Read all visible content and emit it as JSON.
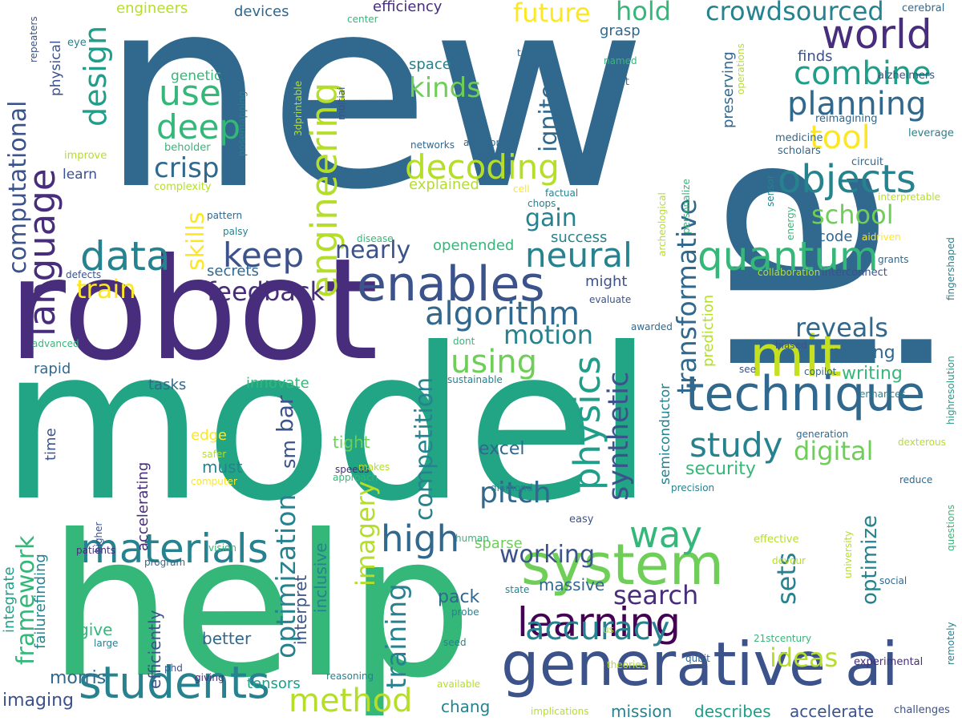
{
  "palette": {
    "c1": "#440154",
    "c2": "#472d7b",
    "c3": "#3b528b",
    "c4": "#31688e",
    "c5": "#26828e",
    "c6": "#1f9e89",
    "c7": "#35b779",
    "c8": "#6ece58",
    "c9": "#b5de2b",
    "c10": "#fde725"
  },
  "words": [
    {
      "text": "new",
      "color": "#31688e"
    },
    {
      "text": "model",
      "color": "#21a585"
    },
    {
      "text": "robot",
      "color": "#472d7b"
    },
    {
      "text": "help",
      "color": "#35b779"
    },
    {
      "text": "ai",
      "color": "#31688e"
    },
    {
      "text": "mit",
      "color": "#c5e021"
    },
    {
      "text": "system",
      "color": "#6ece58"
    },
    {
      "text": "generative ai",
      "color": "#3b528b"
    },
    {
      "text": "learning",
      "color": "#440154"
    },
    {
      "text": "students",
      "color": "#26828e"
    },
    {
      "text": "technique",
      "color": "#31688e"
    },
    {
      "text": "enables",
      "color": "#3b528b"
    },
    {
      "text": "materials",
      "color": "#26828e"
    },
    {
      "text": "quantum",
      "color": "#35b779"
    },
    {
      "text": "language",
      "color": "#472d7b"
    },
    {
      "text": "computational",
      "color": "#3b528b"
    },
    {
      "text": "engineering",
      "color": "#b5de2b"
    },
    {
      "text": "objects",
      "color": "#26828e"
    },
    {
      "text": "world",
      "color": "#472d7b"
    },
    {
      "text": "data",
      "color": "#26828e"
    },
    {
      "text": "algorithm",
      "color": "#31688e"
    },
    {
      "text": "accuracy",
      "color": "#26828e"
    },
    {
      "text": "method",
      "color": "#b5de2b"
    },
    {
      "text": "high",
      "color": "#31688e"
    },
    {
      "text": "way",
      "color": "#35b779"
    },
    {
      "text": "physics",
      "color": "#1f9e89"
    },
    {
      "text": "combine",
      "color": "#1f9e89"
    },
    {
      "text": "planning",
      "color": "#31688e"
    },
    {
      "text": "decoding",
      "color": "#b5de2b"
    },
    {
      "text": "deep",
      "color": "#35b779"
    },
    {
      "text": "keep",
      "color": "#3b528b"
    },
    {
      "text": "neural",
      "color": "#26828e"
    },
    {
      "text": "study",
      "color": "#26828e"
    },
    {
      "text": "using",
      "color": "#6ece58"
    },
    {
      "text": "optimization",
      "color": "#26828e"
    },
    {
      "text": "competition",
      "color": "#26828e"
    },
    {
      "text": "synthetic",
      "color": "#3b528b"
    },
    {
      "text": "transformative",
      "color": "#31688e"
    },
    {
      "text": "pitch",
      "color": "#31688e"
    },
    {
      "text": "search",
      "color": "#472d7b"
    },
    {
      "text": "crowdsourced",
      "color": "#26828e"
    },
    {
      "text": "design",
      "color": "#1f9e89"
    },
    {
      "text": "tool",
      "color": "#fde725"
    },
    {
      "text": "use",
      "color": "#35b779"
    },
    {
      "text": "kinds",
      "color": "#6ece58"
    },
    {
      "text": "crispr",
      "color": "#31688e"
    },
    {
      "text": "future",
      "color": "#fde725"
    },
    {
      "text": "hold",
      "color": "#35b779"
    },
    {
      "text": "motion",
      "color": "#26828e"
    },
    {
      "text": "reveals",
      "color": "#31688e"
    },
    {
      "text": "digital",
      "color": "#6ece58"
    },
    {
      "text": "school",
      "color": "#6ece58"
    },
    {
      "text": "ideas",
      "color": "#b5de2b"
    },
    {
      "text": "working",
      "color": "#3b528b"
    },
    {
      "text": "training",
      "color": "#26828e"
    },
    {
      "text": "imagery",
      "color": "#b5de2b"
    },
    {
      "text": "framework",
      "color": "#35b779"
    },
    {
      "text": "feedback",
      "color": "#472d7b"
    },
    {
      "text": "train",
      "color": "#fde725"
    },
    {
      "text": "skills",
      "color": "#fde725"
    },
    {
      "text": "gain",
      "color": "#26828e"
    },
    {
      "text": "nearly",
      "color": "#3b528b"
    },
    {
      "text": "ignite",
      "color": "#31688e"
    },
    {
      "text": "sets",
      "color": "#26828e"
    },
    {
      "text": "optimize",
      "color": "#26828e"
    },
    {
      "text": "bar",
      "color": "#3b528b"
    },
    {
      "text": "sm",
      "color": "#3b528b"
    },
    {
      "text": "writing",
      "color": "#35b779"
    },
    {
      "text": "making",
      "color": "#31688e"
    },
    {
      "text": "security",
      "color": "#35b779"
    },
    {
      "text": "excel",
      "color": "#31688e"
    },
    {
      "text": "pack",
      "color": "#31688e"
    },
    {
      "text": "tensors",
      "color": "#1f9e89"
    },
    {
      "text": "chang",
      "color": "#26828e"
    },
    {
      "text": "mission",
      "color": "#26828e"
    },
    {
      "text": "describes",
      "color": "#1f9e89"
    },
    {
      "text": "accelerate",
      "color": "#3b528b"
    },
    {
      "text": "morris",
      "color": "#31688e"
    },
    {
      "text": "imaging",
      "color": "#3b528b"
    },
    {
      "text": "integrate",
      "color": "#1f9e89"
    },
    {
      "text": "failurefinding",
      "color": "#26828e"
    },
    {
      "text": "efficiently",
      "color": "#3b528b"
    },
    {
      "text": "interpret",
      "color": "#3b528b"
    },
    {
      "text": "inclusive",
      "color": "#26828e"
    },
    {
      "text": "massive",
      "color": "#31688e"
    },
    {
      "text": "better",
      "color": "#31688e"
    },
    {
      "text": "give",
      "color": "#35b779"
    },
    {
      "text": "must",
      "color": "#26828e"
    },
    {
      "text": "edge",
      "color": "#fde725"
    },
    {
      "text": "tight",
      "color": "#6ece58"
    },
    {
      "text": "sparse",
      "color": "#6ece58"
    },
    {
      "text": "accelerating",
      "color": "#472d7b"
    },
    {
      "text": "semiconductor",
      "color": "#26828e"
    },
    {
      "text": "prediction",
      "color": "#b5de2b"
    },
    {
      "text": "success",
      "color": "#26828e"
    },
    {
      "text": "openended",
      "color": "#35b779"
    },
    {
      "text": "might",
      "color": "#3b528b"
    },
    {
      "text": "secrets",
      "color": "#31688e"
    },
    {
      "text": "innovate",
      "color": "#35b779"
    },
    {
      "text": "tasks",
      "color": "#31688e"
    },
    {
      "text": "rapid",
      "color": "#31688e"
    },
    {
      "text": "time",
      "color": "#3b528b"
    },
    {
      "text": "explained",
      "color": "#b5de2b"
    },
    {
      "text": "space",
      "color": "#26828e"
    },
    {
      "text": "code",
      "color": "#31688e"
    },
    {
      "text": "preserving",
      "color": "#31688e"
    },
    {
      "text": "finds",
      "color": "#3b528b"
    },
    {
      "text": "grasp",
      "color": "#31688e"
    },
    {
      "text": "efficiency",
      "color": "#472d7b"
    },
    {
      "text": "engineers",
      "color": "#b5de2b"
    },
    {
      "text": "devices",
      "color": "#31688e"
    },
    {
      "text": "physical",
      "color": "#3b528b"
    },
    {
      "text": "genetic",
      "color": "#35b779"
    },
    {
      "text": "learn",
      "color": "#3b528b"
    },
    {
      "text": "eye",
      "color": "#26828e"
    },
    {
      "text": "repeaters",
      "color": "#3b528b"
    },
    {
      "text": "improve",
      "color": "#b5de2b"
    },
    {
      "text": "beholder",
      "color": "#35b779"
    },
    {
      "text": "complexity",
      "color": "#b5de2b"
    },
    {
      "text": "posemapping",
      "color": "#26828e"
    },
    {
      "text": "3dprintable",
      "color": "#b5de2b"
    },
    {
      "text": "multiai",
      "color": "#3b528b"
    },
    {
      "text": "center",
      "color": "#35b779"
    },
    {
      "text": "tackle",
      "color": "#31688e"
    },
    {
      "text": "named",
      "color": "#35b779"
    },
    {
      "text": "hunt",
      "color": "#31688e"
    },
    {
      "text": "operations",
      "color": "#b5de2b"
    },
    {
      "text": "cerebral",
      "color": "#31688e"
    },
    {
      "text": "alzheimers",
      "color": "#3b528b"
    },
    {
      "text": "reimagining",
      "color": "#31688e"
    },
    {
      "text": "leverage",
      "color": "#26828e"
    },
    {
      "text": "medicine",
      "color": "#31688e"
    },
    {
      "text": "scholars",
      "color": "#31688e"
    },
    {
      "text": "circuit",
      "color": "#31688e"
    },
    {
      "text": "networks",
      "color": "#31688e"
    },
    {
      "text": "aviation",
      "color": "#31688e"
    },
    {
      "text": "cell",
      "color": "#fde725"
    },
    {
      "text": "factual",
      "color": "#26828e"
    },
    {
      "text": "chops",
      "color": "#26828e"
    },
    {
      "text": "personalize",
      "color": "#35b779"
    },
    {
      "text": "archeological",
      "color": "#b5de2b"
    },
    {
      "text": "sensor",
      "color": "#26828e"
    },
    {
      "text": "energy",
      "color": "#35b779"
    },
    {
      "text": "interpretable",
      "color": "#b5de2b"
    },
    {
      "text": "aidriven",
      "color": "#fde725"
    },
    {
      "text": "grants",
      "color": "#31688e"
    },
    {
      "text": "fingershaped",
      "color": "#26828e"
    },
    {
      "text": "collaboration",
      "color": "#b5de2b"
    },
    {
      "text": "interconnect",
      "color": "#3b528b"
    },
    {
      "text": "pattern",
      "color": "#31688e"
    },
    {
      "text": "palsy",
      "color": "#26828e"
    },
    {
      "text": "disease",
      "color": "#35b779"
    },
    {
      "text": "defects",
      "color": "#3b528b"
    },
    {
      "text": "advanced",
      "color": "#35b779"
    },
    {
      "text": "evaluate",
      "color": "#3b528b"
    },
    {
      "text": "awarded",
      "color": "#31688e"
    },
    {
      "text": "dont",
      "color": "#35b779"
    },
    {
      "text": "sustainable",
      "color": "#26828e"
    },
    {
      "text": "biased",
      "color": "#3b528b"
    },
    {
      "text": "see",
      "color": "#3b528b"
    },
    {
      "text": "copilot",
      "color": "#31688e"
    },
    {
      "text": "enhances",
      "color": "#26828e"
    },
    {
      "text": "highresolution",
      "color": "#1f9e89"
    },
    {
      "text": "generation",
      "color": "#31688e"
    },
    {
      "text": "dexterous",
      "color": "#b5de2b"
    },
    {
      "text": "reduce",
      "color": "#31688e"
    },
    {
      "text": "precision",
      "color": "#26828e"
    },
    {
      "text": "questions",
      "color": "#35b779"
    },
    {
      "text": "speeds",
      "color": "#472d7b"
    },
    {
      "text": "makes",
      "color": "#b5de2b"
    },
    {
      "text": "approach",
      "color": "#35b779"
    },
    {
      "text": "diamond",
      "color": "#26828e"
    },
    {
      "text": "safer",
      "color": "#b5de2b"
    },
    {
      "text": "computer",
      "color": "#fde725"
    },
    {
      "text": "higher",
      "color": "#3b528b"
    },
    {
      "text": "patients",
      "color": "#472d7b"
    },
    {
      "text": "vision",
      "color": "#35b779"
    },
    {
      "text": "program",
      "color": "#31688e"
    },
    {
      "text": "human",
      "color": "#35b779"
    },
    {
      "text": "easy",
      "color": "#3b528b"
    },
    {
      "text": "effective",
      "color": "#b5de2b"
    },
    {
      "text": "devour",
      "color": "#b5de2b"
    },
    {
      "text": "university",
      "color": "#b5de2b"
    },
    {
      "text": "social",
      "color": "#31688e"
    },
    {
      "text": "state",
      "color": "#26828e"
    },
    {
      "text": "probe",
      "color": "#26828e"
    },
    {
      "text": "us",
      "color": "#b5de2b"
    },
    {
      "text": "21stcentury",
      "color": "#35b779"
    },
    {
      "text": "seed",
      "color": "#26828e"
    },
    {
      "text": "large",
      "color": "#26828e"
    },
    {
      "text": "phd",
      "color": "#3b528b"
    },
    {
      "text": "giving",
      "color": "#472d7b"
    },
    {
      "text": "reasoning",
      "color": "#26828e"
    },
    {
      "text": "theories",
      "color": "#b5de2b"
    },
    {
      "text": "qubit",
      "color": "#31688e"
    },
    {
      "text": "experimental",
      "color": "#472d7b"
    },
    {
      "text": "remotely",
      "color": "#26828e"
    },
    {
      "text": "available",
      "color": "#b5de2b"
    },
    {
      "text": "implications",
      "color": "#b5de2b"
    },
    {
      "text": "challenges",
      "color": "#3b528b"
    }
  ]
}
